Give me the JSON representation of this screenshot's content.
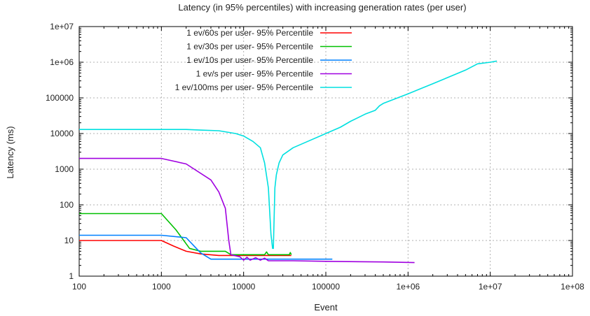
{
  "chart_data": {
    "type": "line",
    "title": "Latency (in 95% percentiles) with increasing generation rates (per user)",
    "xlabel": "Event",
    "ylabel": "Latency (ms)",
    "xscale": "log",
    "yscale": "log",
    "xlim": [
      100,
      100000000
    ],
    "ylim": [
      1,
      10000000
    ],
    "xticks": [
      {
        "value": 100,
        "label": "100"
      },
      {
        "value": 1000,
        "label": "1000"
      },
      {
        "value": 10000,
        "label": "10000"
      },
      {
        "value": 100000,
        "label": "100000"
      },
      {
        "value": 1000000,
        "label": "1e+06"
      },
      {
        "value": 10000000,
        "label": "1e+07"
      },
      {
        "value": 100000000,
        "label": "1e+08"
      }
    ],
    "yticks": [
      {
        "value": 1,
        "label": "1"
      },
      {
        "value": 10,
        "label": "10"
      },
      {
        "value": 100,
        "label": "100"
      },
      {
        "value": 1000,
        "label": "1000"
      },
      {
        "value": 10000,
        "label": "10000"
      },
      {
        "value": 100000,
        "label": "100000"
      },
      {
        "value": 1000000,
        "label": "1e+06"
      },
      {
        "value": 10000000,
        "label": "1e+07"
      }
    ],
    "grid": true,
    "legend_position": "top-left",
    "series": [
      {
        "name": "1 ev/60s per user- 95% Percentile",
        "color": "#ff0000",
        "x": [
          100,
          1000,
          1400,
          2000,
          3000,
          5000,
          10000,
          20000,
          38000
        ],
        "y": [
          10,
          10,
          7,
          5,
          4.2,
          3.8,
          3.8,
          3.8,
          3.8
        ]
      },
      {
        "name": "1 ev/30s per user- 95% Percentile",
        "color": "#00c000",
        "x": [
          100,
          1000,
          1500,
          2200,
          3000,
          6000,
          7000,
          10000,
          18000,
          19000,
          20000,
          30000,
          36000,
          37000,
          38000
        ],
        "y": [
          57,
          57,
          20,
          6,
          5,
          5,
          4,
          4,
          4,
          4.8,
          4,
          4,
          4,
          4.6,
          4
        ]
      },
      {
        "name": "1 ev/10s per user- 95% Percentile",
        "color": "#0080ff",
        "x": [
          100,
          1000,
          2000,
          2500,
          3000,
          4000,
          10000,
          50000,
          120000
        ],
        "y": [
          14,
          14,
          12,
          7,
          4.5,
          3,
          3,
          3,
          3
        ]
      },
      {
        "name": "1 ev/s per user- 95% Percentile",
        "color": "#a000e0",
        "x": [
          100,
          1000,
          2000,
          4000,
          5000,
          6000,
          6600,
          7000,
          9000,
          10000,
          11000,
          12000,
          14000,
          16000,
          18000,
          20000,
          40000,
          100000,
          500000,
          1200000
        ],
        "y": [
          2000,
          2000,
          1400,
          500,
          230,
          80,
          10,
          4,
          3.5,
          2.8,
          3.4,
          2.8,
          3.3,
          2.8,
          3.2,
          2.7,
          2.7,
          2.6,
          2.5,
          2.4
        ]
      },
      {
        "name": "1 ev/100ms per user- 95% Percentile",
        "color": "#00e0e0",
        "x": [
          100,
          1000,
          2000,
          3000,
          5000,
          8000,
          10000,
          13000,
          16000,
          18000,
          20000,
          21500,
          22500,
          23000,
          24000,
          25000,
          27000,
          30000,
          40000,
          60000,
          100000,
          150000,
          200000,
          300000,
          400000,
          450000,
          500000,
          1000000,
          2000000,
          5000000,
          7000000,
          10000000,
          12000000
        ],
        "y": [
          13000,
          13000,
          13000,
          12500,
          12000,
          10000,
          8500,
          6000,
          4000,
          1500,
          300,
          15,
          6,
          6,
          300,
          700,
          1500,
          2500,
          4000,
          6000,
          10000,
          15000,
          22000,
          35000,
          45000,
          60000,
          70000,
          130000,
          250000,
          600000,
          900000,
          1000000,
          1080000
        ]
      }
    ]
  }
}
